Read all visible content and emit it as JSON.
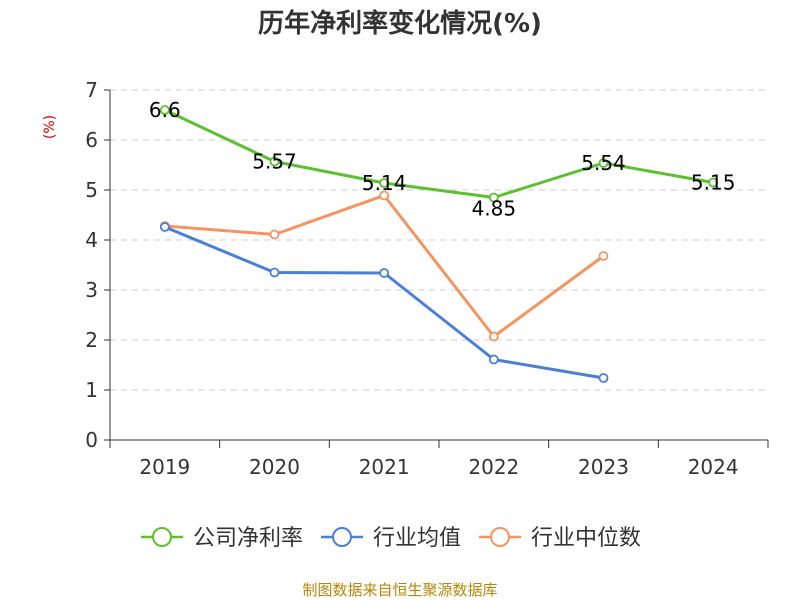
{
  "chart_data": {
    "type": "line",
    "title": "历年净利率变化情况(%)",
    "ylabel": "(%)",
    "xlabel": "",
    "ylim": [
      0,
      7
    ],
    "yticks": [
      "0",
      "1",
      "2",
      "3",
      "4",
      "5",
      "6",
      "7"
    ],
    "categories": [
      "2019",
      "2020",
      "2021",
      "2022",
      "2023",
      "2024"
    ],
    "grid": true,
    "legend_position": "bottom",
    "series": [
      {
        "name": "公司净利率",
        "color": "#5cc030",
        "values": [
          6.6,
          5.57,
          5.14,
          4.85,
          5.54,
          5.15
        ],
        "labels": [
          "6.6",
          "5.57",
          "5.14",
          "4.85",
          "5.54",
          "5.15"
        ]
      },
      {
        "name": "行业均值",
        "color": "#4a7fd6",
        "values": [
          4.26,
          3.35,
          3.34,
          1.61,
          1.24,
          null
        ]
      },
      {
        "name": "行业中位数",
        "color": "#f59460",
        "values": [
          4.28,
          4.11,
          4.89,
          2.07,
          3.68,
          null
        ]
      }
    ],
    "source": "制图数据来自恒生聚源数据库"
  }
}
